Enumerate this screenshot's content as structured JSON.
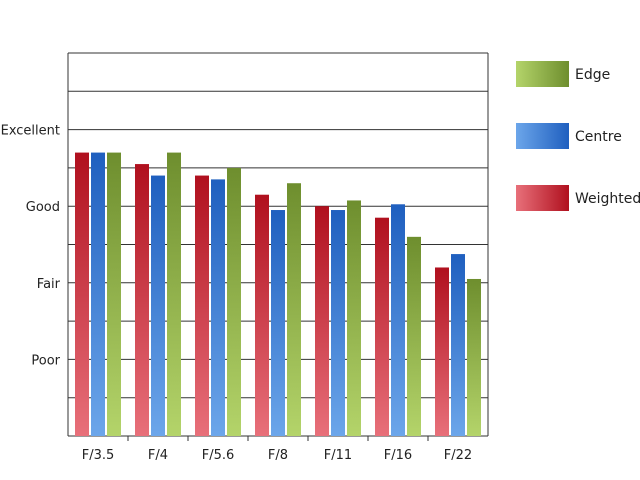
{
  "chart_data": {
    "type": "bar",
    "categories": [
      "F/3.5",
      "F/4",
      "F/5.6",
      "F/8",
      "F/11",
      "F/16",
      "F/22"
    ],
    "y_ticks": [
      {
        "label": "Poor",
        "value": 2
      },
      {
        "label": "Fair",
        "value": 4
      },
      {
        "label": "Good",
        "value": 6
      },
      {
        "label": "Excellent",
        "value": 8
      }
    ],
    "ylim": [
      0,
      10
    ],
    "grid": true,
    "legend_position": "right",
    "series": [
      {
        "name": "Weighted",
        "values": [
          7.4,
          7.1,
          6.8,
          6.3,
          6.0,
          5.7,
          4.4
        ],
        "color_light": "#e8707a",
        "color_dark": "#b0101e"
      },
      {
        "name": "Centre",
        "values": [
          7.4,
          6.8,
          6.7,
          5.9,
          5.9,
          6.05,
          4.75
        ],
        "color_light": "#6ca6ea",
        "color_dark": "#1f5fbf"
      },
      {
        "name": "Edge",
        "values": [
          7.4,
          7.4,
          7.0,
          6.6,
          6.15,
          5.2,
          4.1
        ],
        "color_light": "#b4d46a",
        "color_dark": "#6e8e2e"
      }
    ],
    "legend_order": [
      "Edge",
      "Centre",
      "Weighted"
    ]
  }
}
